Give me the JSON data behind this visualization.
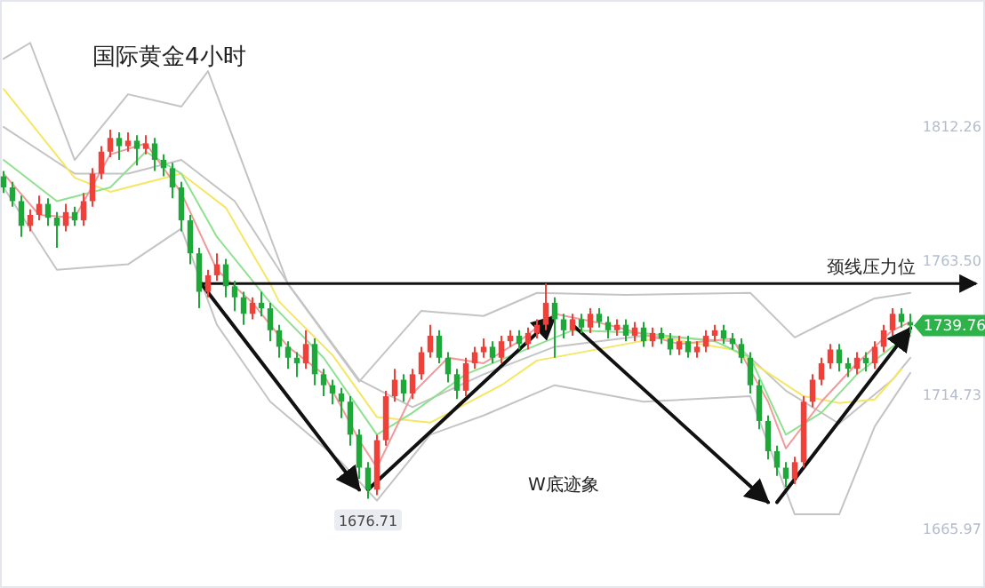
{
  "chart_data": {
    "type": "candlestick",
    "title": "国际黄金4小时",
    "categories": [
      null,
      null,
      null,
      null,
      null,
      null,
      null,
      null,
      null,
      null,
      null,
      null,
      null,
      null,
      null,
      null,
      null,
      null,
      null,
      null,
      null,
      null,
      null,
      null,
      null,
      null,
      null,
      null,
      null,
      null,
      null,
      null,
      null,
      null,
      null,
      null,
      null,
      null,
      null,
      null,
      null,
      null,
      null,
      null,
      null,
      null,
      null,
      null,
      null,
      null,
      null,
      null,
      null,
      null,
      null,
      null,
      null,
      null,
      null,
      null,
      null,
      null,
      null,
      null,
      null,
      null,
      null,
      null,
      null,
      null,
      null,
      null,
      null,
      null,
      null,
      null,
      null,
      null,
      null,
      null,
      null,
      null,
      null,
      null,
      null,
      null,
      null,
      null,
      null,
      null,
      null,
      null,
      null,
      null,
      null,
      null,
      null,
      null,
      null,
      null,
      null,
      null,
      null
    ],
    "ohlc": [
      [
        1794,
        1796,
        1788,
        1790
      ],
      [
        1790,
        1792,
        1783,
        1785
      ],
      [
        1785,
        1787,
        1772,
        1776
      ],
      [
        1776,
        1782,
        1774,
        1780
      ],
      [
        1780,
        1787,
        1778,
        1784
      ],
      [
        1784,
        1786,
        1776,
        1779
      ],
      [
        1779,
        1781,
        1768,
        1776
      ],
      [
        1776,
        1784,
        1774,
        1781
      ],
      [
        1781,
        1783,
        1776,
        1778
      ],
      [
        1778,
        1788,
        1776,
        1785
      ],
      [
        1785,
        1797,
        1783,
        1795
      ],
      [
        1795,
        1805,
        1793,
        1803
      ],
      [
        1803,
        1811,
        1801,
        1808
      ],
      [
        1808,
        1810,
        1800,
        1805
      ],
      [
        1805,
        1810,
        1803,
        1807
      ],
      [
        1807,
        1809,
        1798,
        1804
      ],
      [
        1804,
        1809,
        1802,
        1806
      ],
      [
        1806,
        1808,
        1796,
        1800
      ],
      [
        1800,
        1802,
        1794,
        1797
      ],
      [
        1797,
        1799,
        1786,
        1790
      ],
      [
        1790,
        1792,
        1774,
        1778
      ],
      [
        1778,
        1780,
        1762,
        1766
      ],
      [
        1766,
        1768,
        1746,
        1752
      ],
      [
        1752,
        1760,
        1750,
        1758
      ],
      [
        1758,
        1766,
        1756,
        1762
      ],
      [
        1762,
        1764,
        1750,
        1754
      ],
      [
        1754,
        1756,
        1745,
        1750
      ],
      [
        1750,
        1752,
        1740,
        1744
      ],
      [
        1744,
        1750,
        1742,
        1748
      ],
      [
        1748,
        1752,
        1743,
        1746
      ],
      [
        1746,
        1748,
        1734,
        1738
      ],
      [
        1738,
        1740,
        1728,
        1732
      ],
      [
        1732,
        1734,
        1724,
        1728
      ],
      [
        1728,
        1730,
        1721,
        1726
      ],
      [
        1726,
        1738,
        1724,
        1733
      ],
      [
        1733,
        1735,
        1718,
        1722
      ],
      [
        1722,
        1724,
        1714,
        1718
      ],
      [
        1718,
        1720,
        1711,
        1715
      ],
      [
        1715,
        1717,
        1706,
        1712
      ],
      [
        1712,
        1714,
        1696,
        1700
      ],
      [
        1700,
        1702,
        1684,
        1688
      ],
      [
        1688,
        1690,
        1676.71,
        1680
      ],
      [
        1680,
        1700,
        1678,
        1698
      ],
      [
        1698,
        1716,
        1696,
        1714
      ],
      [
        1714,
        1724,
        1712,
        1720
      ],
      [
        1720,
        1722,
        1712,
        1715
      ],
      [
        1715,
        1724,
        1713,
        1722
      ],
      [
        1722,
        1732,
        1720,
        1730
      ],
      [
        1730,
        1740,
        1728,
        1736
      ],
      [
        1736,
        1738,
        1726,
        1728
      ],
      [
        1728,
        1730,
        1719,
        1722
      ],
      [
        1722,
        1724,
        1713,
        1716
      ],
      [
        1716,
        1728,
        1714,
        1726
      ],
      [
        1726,
        1732,
        1724,
        1730
      ],
      [
        1730,
        1735,
        1728,
        1732
      ],
      [
        1732,
        1734,
        1726,
        1728
      ],
      [
        1728,
        1736,
        1726,
        1734
      ],
      [
        1734,
        1738,
        1732,
        1736
      ],
      [
        1736,
        1738,
        1731,
        1733
      ],
      [
        1733,
        1739,
        1731,
        1737
      ],
      [
        1737,
        1742,
        1735,
        1740
      ],
      [
        1740,
        1755,
        1738,
        1748
      ],
      [
        1748,
        1750,
        1728,
        1742
      ],
      [
        1742,
        1744,
        1735,
        1738
      ],
      [
        1738,
        1744,
        1736,
        1742
      ],
      [
        1742,
        1744,
        1737,
        1739
      ],
      [
        1739,
        1746,
        1737,
        1744
      ],
      [
        1744,
        1746,
        1739,
        1741
      ],
      [
        1741,
        1743,
        1735,
        1738
      ],
      [
        1738,
        1742,
        1736,
        1740
      ],
      [
        1740,
        1742,
        1734,
        1736
      ],
      [
        1736,
        1741,
        1734,
        1739
      ],
      [
        1739,
        1741,
        1732,
        1734
      ],
      [
        1734,
        1739,
        1732,
        1737
      ],
      [
        1737,
        1739,
        1733,
        1735
      ],
      [
        1735,
        1737,
        1729,
        1731
      ],
      [
        1731,
        1736,
        1729,
        1734
      ],
      [
        1734,
        1736,
        1728,
        1730
      ],
      [
        1730,
        1734,
        1728,
        1732
      ],
      [
        1732,
        1738,
        1730,
        1736
      ],
      [
        1736,
        1740,
        1734,
        1738
      ],
      [
        1738,
        1740,
        1733,
        1735
      ],
      [
        1735,
        1737,
        1731,
        1733
      ],
      [
        1733,
        1735,
        1726,
        1728
      ],
      [
        1728,
        1730,
        1715,
        1718
      ],
      [
        1718,
        1720,
        1702,
        1705
      ],
      [
        1705,
        1707,
        1691,
        1694
      ],
      [
        1694,
        1696,
        1685,
        1688
      ],
      [
        1688,
        1690,
        1681,
        1684
      ],
      [
        1684,
        1692,
        1682,
        1690
      ],
      [
        1690,
        1714,
        1688,
        1712
      ],
      [
        1712,
        1722,
        1710,
        1720
      ],
      [
        1720,
        1728,
        1718,
        1726
      ],
      [
        1726,
        1733,
        1724,
        1731
      ],
      [
        1731,
        1733,
        1723,
        1726
      ],
      [
        1726,
        1728,
        1721,
        1724
      ],
      [
        1724,
        1730,
        1722,
        1728
      ],
      [
        1728,
        1730,
        1723,
        1726
      ],
      [
        1726,
        1734,
        1724,
        1732
      ],
      [
        1732,
        1740,
        1730,
        1738
      ],
      [
        1738,
        1746,
        1736,
        1744
      ],
      [
        1744,
        1746,
        1739,
        1741
      ],
      [
        1741,
        1744,
        1737,
        1739.76
      ]
    ],
    "series": [
      {
        "type": "line",
        "color": "#c4c4c4",
        "values": [
          1836.8,
          null,
          null,
          1842.6,
          null,
          null,
          null,
          null,
          1800,
          null,
          null,
          null,
          null,
          null,
          1823.9,
          null,
          null,
          null,
          null,
          null,
          1819.4,
          null,
          null,
          1832.3,
          null,
          null,
          null,
          null,
          null,
          null,
          null,
          null,
          1754.8,
          null,
          null,
          null,
          null,
          null,
          null,
          null,
          1719.3,
          null,
          null,
          null,
          null,
          null,
          null,
          1745.1,
          null,
          null,
          null,
          null,
          null,
          null,
          1743.2,
          null,
          null,
          null,
          null,
          null,
          1751.6,
          null,
          null,
          null,
          null,
          null,
          null,
          null,
          null,
          null,
          1750.9,
          null,
          null,
          null,
          null,
          null,
          null,
          null,
          null,
          null,
          null,
          null,
          null,
          null,
          1751.6,
          null,
          null,
          null,
          null,
          1735.4,
          null,
          null,
          null,
          1741.9,
          null,
          null,
          null,
          null,
          1749.6,
          null,
          null,
          null,
          1751.6
        ]
      },
      {
        "type": "line",
        "color": "#c4c4c4",
        "values": [
          1812,
          null,
          null,
          null,
          null,
          null,
          null,
          null,
          1795,
          null,
          null,
          null,
          null,
          null,
          1795,
          null,
          null,
          null,
          null,
          null,
          1800,
          null,
          null,
          null,
          null,
          null,
          1785,
          null,
          null,
          null,
          null,
          null,
          1755,
          null,
          null,
          null,
          null,
          null,
          null,
          null,
          1720,
          null,
          null,
          null,
          null,
          null,
          1710,
          null,
          null,
          null,
          null,
          null,
          null,
          null,
          1722,
          null,
          null,
          null,
          null,
          null,
          null,
          null,
          1732,
          null,
          null,
          null,
          null,
          null,
          null,
          null,
          null,
          null,
          1736,
          null,
          null,
          null,
          null,
          null,
          null,
          null,
          null,
          null,
          1734,
          null,
          null,
          null,
          null,
          null,
          1716,
          null,
          null,
          null,
          null,
          null,
          1704,
          null,
          null,
          null,
          null,
          null,
          1720,
          null,
          1728
        ]
      },
      {
        "type": "line",
        "color": "#c4c4c4",
        "values": [
          1790,
          null,
          null,
          null,
          null,
          null,
          1760,
          null,
          null,
          null,
          null,
          null,
          null,
          null,
          1762,
          null,
          null,
          null,
          null,
          null,
          1775,
          null,
          null,
          null,
          1740,
          null,
          null,
          null,
          null,
          null,
          1712,
          null,
          null,
          null,
          null,
          null,
          null,
          null,
          1690,
          null,
          null,
          null,
          1676,
          null,
          null,
          null,
          null,
          null,
          1700,
          null,
          null,
          null,
          null,
          null,
          1707,
          null,
          null,
          null,
          null,
          null,
          null,
          null,
          1718,
          null,
          null,
          null,
          null,
          null,
          null,
          null,
          null,
          null,
          1712,
          null,
          null,
          null,
          null,
          null,
          null,
          null,
          null,
          null,
          null,
          null,
          1714,
          null,
          null,
          null,
          null,
          1671,
          null,
          null,
          null,
          null,
          1671,
          null,
          null,
          null,
          1703,
          null,
          null,
          null,
          1722.5
        ]
      },
      {
        "type": "line",
        "color": "#f5e663",
        "values": [
          1825.8,
          null,
          null,
          null,
          null,
          null,
          null,
          null,
          1793.5,
          null,
          null,
          null,
          1788.4,
          null,
          null,
          null,
          null,
          null,
          null,
          null,
          1795,
          null,
          null,
          null,
          null,
          1782.6,
          null,
          null,
          null,
          null,
          1754.8,
          1748.4,
          null,
          null,
          null,
          null,
          null,
          1729,
          null,
          null,
          null,
          null,
          1706.4,
          null,
          null,
          null,
          null,
          null,
          1704.4,
          null,
          null,
          null,
          null,
          null,
          null,
          null,
          1718,
          null,
          null,
          null,
          1727,
          null,
          null,
          null,
          null,
          null,
          null,
          null,
          null,
          null,
          null,
          null,
          null,
          null,
          1735.4,
          null,
          null,
          null,
          null,
          null,
          null,
          null,
          1731,
          null,
          null,
          null,
          null,
          null,
          null,
          null,
          1714,
          null,
          null,
          null,
          1711.5,
          null,
          null,
          null,
          1712.8,
          null,
          null,
          1723.8,
          null
        ]
      },
      {
        "type": "line",
        "color": "#8fe08f",
        "values": [
          1800,
          null,
          null,
          null,
          null,
          null,
          1785,
          null,
          null,
          null,
          null,
          null,
          1790,
          null,
          null,
          null,
          1803,
          null,
          null,
          null,
          1795,
          null,
          null,
          null,
          1772,
          null,
          null,
          null,
          null,
          null,
          1748,
          null,
          null,
          null,
          null,
          null,
          1728,
          null,
          null,
          null,
          null,
          null,
          1700,
          null,
          null,
          null,
          1708,
          null,
          null,
          null,
          null,
          null,
          1722,
          null,
          null,
          null,
          null,
          null,
          1730,
          null,
          null,
          null,
          null,
          null,
          1738,
          null,
          null,
          null,
          null,
          null,
          null,
          null,
          1737,
          null,
          null,
          null,
          null,
          null,
          null,
          null,
          1734,
          null,
          null,
          null,
          1728,
          null,
          null,
          null,
          1700,
          null,
          null,
          null,
          1708,
          null,
          null,
          null,
          1722,
          null,
          null,
          null,
          1732,
          null,
          1736
        ]
      },
      {
        "type": "line",
        "color": "#f29a9a",
        "values": [
          1795,
          null,
          null,
          null,
          1780,
          null,
          null,
          null,
          1779,
          null,
          null,
          null,
          1802,
          null,
          null,
          null,
          1806,
          null,
          null,
          null,
          1788,
          null,
          null,
          null,
          1760,
          null,
          null,
          null,
          1748,
          null,
          null,
          null,
          1732,
          null,
          null,
          null,
          1722,
          null,
          null,
          null,
          1698,
          null,
          1688,
          null,
          null,
          null,
          1715,
          null,
          null,
          null,
          1728,
          null,
          null,
          null,
          1726,
          null,
          null,
          null,
          1734,
          null,
          null,
          null,
          1744,
          null,
          null,
          null,
          null,
          null,
          1740,
          null,
          null,
          null,
          null,
          null,
          null,
          null,
          1733,
          null,
          null,
          null,
          null,
          null,
          1735,
          null,
          null,
          null,
          1712,
          null,
          1695,
          null,
          null,
          null,
          1712,
          null,
          null,
          null,
          1726,
          null,
          null,
          null,
          1738,
          null,
          1741
        ]
      },
      {
        "type": "line",
        "color": "#111111",
        "values": [
          null,
          null,
          null,
          null,
          null,
          null,
          null,
          null,
          null,
          null,
          null,
          null,
          null,
          null,
          null,
          null,
          null,
          null,
          null,
          null,
          null,
          null,
          1756,
          null,
          null,
          null,
          null,
          null,
          null,
          null,
          null,
          null,
          null,
          null,
          null,
          null,
          null,
          null,
          null,
          null,
          1680,
          null,
          null,
          null,
          null,
          null,
          null,
          null,
          null,
          null,
          null,
          null,
          null,
          null,
          null,
          null,
          null,
          null,
          null,
          null,
          null,
          null,
          null,
          null,
          null,
          null,
          null,
          null,
          null,
          null,
          null,
          null,
          null,
          null,
          null,
          null,
          null,
          null,
          null,
          null,
          null,
          null,
          null,
          null,
          null,
          null,
          null,
          null,
          null,
          null,
          null,
          null,
          null,
          null,
          null,
          null,
          null,
          null,
          null,
          null,
          null,
          null,
          null
        ]
      },
      {
        "type": "line",
        "color": "#111111",
        "values": [
          null,
          null,
          null,
          null,
          null,
          null,
          null,
          null,
          null,
          null,
          null,
          null,
          null,
          null,
          null,
          null,
          null,
          null,
          null,
          null,
          null,
          null,
          null,
          null,
          null,
          null,
          null,
          null,
          null,
          null,
          null,
          null,
          null,
          null,
          null,
          null,
          null,
          null,
          null,
          null,
          null,
          1680,
          null,
          null,
          null,
          null,
          null,
          null,
          null,
          null,
          null,
          null,
          null,
          null,
          null,
          null,
          null,
          null,
          null,
          null,
          null,
          null,
          1743,
          null,
          null,
          null,
          null,
          null,
          null,
          null,
          null,
          null,
          null,
          null,
          null,
          null,
          null,
          null,
          null,
          null,
          null,
          null,
          null,
          null,
          null,
          null,
          null,
          null,
          null,
          null,
          null,
          null,
          null,
          null,
          null,
          null,
          null,
          null,
          null,
          null,
          null,
          null,
          null
        ]
      },
      {
        "type": "line",
        "color": "#111111",
        "values": [
          null,
          null,
          null,
          null,
          null,
          null,
          null,
          null,
          null,
          null,
          null,
          null,
          null,
          null,
          null,
          null,
          null,
          null,
          null,
          null,
          null,
          null,
          null,
          null,
          null,
          null,
          null,
          null,
          null,
          null,
          null,
          null,
          null,
          null,
          null,
          null,
          null,
          null,
          null,
          null,
          null,
          null,
          null,
          null,
          null,
          null,
          null,
          null,
          null,
          null,
          null,
          null,
          null,
          null,
          null,
          null,
          null,
          null,
          null,
          null,
          null,
          null,
          null,
          null,
          1740,
          null,
          null,
          null,
          null,
          null,
          null,
          null,
          null,
          null,
          null,
          null,
          null,
          null,
          null,
          null,
          null,
          null,
          null,
          null,
          null,
          null,
          1675.4,
          null,
          null,
          null,
          null,
          null,
          null,
          null,
          null,
          null,
          null,
          null,
          null,
          null,
          null,
          null,
          null
        ]
      },
      {
        "type": "line",
        "color": "#111111",
        "values": [
          null,
          null,
          null,
          null,
          null,
          null,
          null,
          null,
          null,
          null,
          null,
          null,
          null,
          null,
          null,
          null,
          null,
          null,
          null,
          null,
          null,
          null,
          null,
          null,
          null,
          null,
          null,
          null,
          null,
          null,
          null,
          null,
          null,
          null,
          null,
          null,
          null,
          null,
          null,
          null,
          null,
          null,
          null,
          null,
          null,
          null,
          null,
          null,
          null,
          null,
          null,
          null,
          null,
          null,
          null,
          null,
          null,
          null,
          null,
          null,
          null,
          null,
          null,
          null,
          null,
          null,
          null,
          null,
          null,
          null,
          null,
          null,
          null,
          null,
          null,
          null,
          null,
          null,
          null,
          null,
          null,
          null,
          null,
          null,
          null,
          null,
          null,
          1675.4,
          null,
          null,
          null,
          null,
          null,
          null,
          null,
          null,
          null,
          null,
          null,
          null,
          null,
          null,
          1738.7
        ]
      }
    ],
    "ref_lines": [
      {
        "axis": "y",
        "value": 1755,
        "label": "颈线压力位",
        "color": "#111111"
      }
    ],
    "ylim": [
      1644.2,
      1858.2
    ],
    "yticks": [
      {
        "value": 1665.97,
        "label": "1665.97"
      },
      {
        "value": 1714.73,
        "label": "1714.73"
      },
      {
        "value": 1763.5,
        "label": "1763.50"
      },
      {
        "value": 1812.26,
        "label": "1812.26"
      }
    ],
    "tick_labels": "y",
    "annotations": [
      "W底迹象",
      {
        "text": "1676.71",
        "y": 1676.71
      },
      "1739.76"
    ]
  }
}
